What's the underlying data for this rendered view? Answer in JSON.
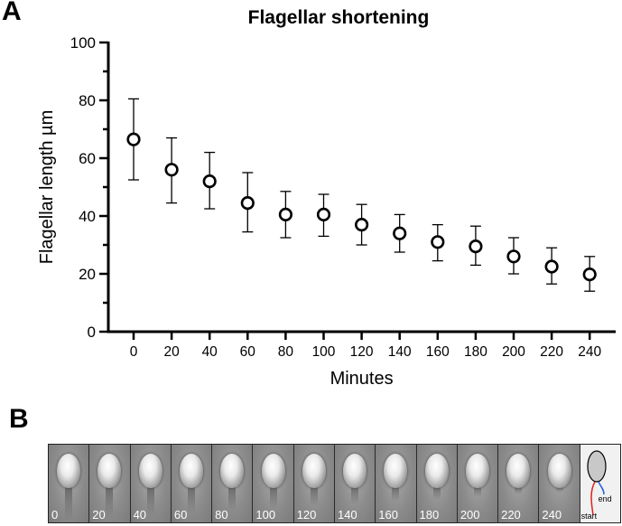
{
  "panels": {
    "a": "A",
    "b": "B"
  },
  "chart_data": {
    "type": "scatter",
    "title": "Flagellar shortening",
    "xlabel": "Minutes",
    "ylabel": "Flagellar length µm",
    "x": [
      0,
      20,
      40,
      60,
      80,
      100,
      120,
      140,
      160,
      180,
      200,
      220,
      240
    ],
    "y": [
      66.5,
      56,
      52,
      44.5,
      40.5,
      40.5,
      37,
      34,
      31,
      29.5,
      26,
      22.5,
      19.8
    ],
    "error_upper": [
      80.5,
      67,
      62,
      55,
      48.5,
      47.5,
      44,
      40.5,
      37,
      36.5,
      32.5,
      29,
      26
    ],
    "error_lower": [
      52.5,
      44.5,
      42.5,
      34.5,
      32.5,
      33,
      30,
      27.5,
      24.5,
      23,
      20,
      16.5,
      14
    ],
    "xticks": [
      "0",
      "20",
      "40",
      "60",
      "80",
      "100",
      "120",
      "140",
      "160",
      "180",
      "200",
      "220",
      "240"
    ],
    "yticks": [
      "0",
      "20",
      "40",
      "60",
      "80",
      "100"
    ],
    "ylim": [
      0,
      100
    ],
    "marker": "open-circle",
    "grid": false
  },
  "strip": {
    "frames": [
      "0",
      "20",
      "40",
      "60",
      "80",
      "100",
      "120",
      "140",
      "160",
      "180",
      "200",
      "220",
      "240"
    ],
    "schematic": {
      "end_label": "end",
      "start_label": "start",
      "start_color": "#e02020",
      "end_color": "#2060e0"
    }
  }
}
